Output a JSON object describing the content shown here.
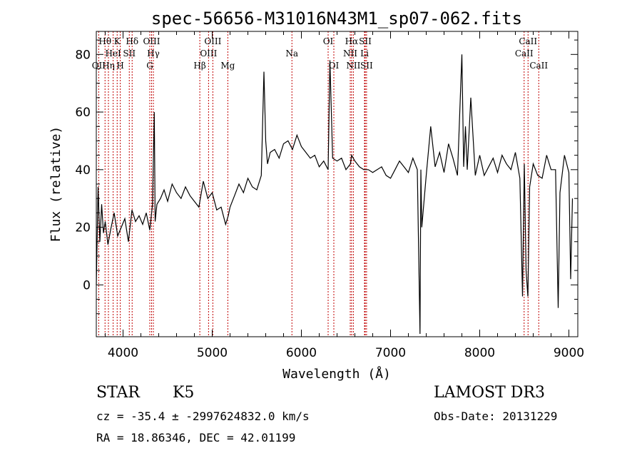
{
  "chart_data": {
    "type": "line",
    "title": "spec-56656-M31016N43M1_sp07-062.fits",
    "xlabel": "Wavelength (Å)",
    "ylabel": "Flux (relative)",
    "xlim": [
      3700,
      9100
    ],
    "ylim": [
      -18,
      88
    ],
    "xticks": [
      "4000",
      "5000",
      "6000",
      "7000",
      "8000",
      "9000"
    ],
    "yticks": [
      "0",
      "20",
      "40",
      "60",
      "80"
    ],
    "xtick_values": [
      4000,
      5000,
      6000,
      7000,
      8000,
      9000
    ],
    "ytick_values": [
      0,
      20,
      40,
      60,
      80
    ],
    "lines": [
      {
        "label": "Hθ",
        "wavelength": 3798,
        "row": 0
      },
      {
        "label": "OII",
        "wavelength": 3727,
        "row": 2
      },
      {
        "label": "Hη",
        "wavelength": 3836,
        "row": 2
      },
      {
        "label": "HeI",
        "wavelength": 3889,
        "row": 1
      },
      {
        "label": "K",
        "wavelength": 3934,
        "row": 0
      },
      {
        "label": "H",
        "wavelength": 3969,
        "row": 2
      },
      {
        "label": "SII",
        "wavelength": 4070,
        "row": 1
      },
      {
        "label": "Hδ",
        "wavelength": 4102,
        "row": 0
      },
      {
        "label": "G",
        "wavelength": 4300,
        "row": 2
      },
      {
        "label": "OIII",
        "wavelength": 4320,
        "row": 0
      },
      {
        "label": "Hγ",
        "wavelength": 4340,
        "row": 1
      },
      {
        "label": "Hβ",
        "wavelength": 4861,
        "row": 2
      },
      {
        "label": "OIII",
        "wavelength": 4959,
        "row": 1
      },
      {
        "label": "OIII",
        "wavelength": 5007,
        "row": 0
      },
      {
        "label": "Mg",
        "wavelength": 5175,
        "row": 2
      },
      {
        "label": "Na",
        "wavelength": 5894,
        "row": 1
      },
      {
        "label": "OI",
        "wavelength": 6300,
        "row": 0
      },
      {
        "label": "OI",
        "wavelength": 6364,
        "row": 2
      },
      {
        "label": "NII",
        "wavelength": 6548,
        "row": 1
      },
      {
        "label": "Hα",
        "wavelength": 6563,
        "row": 0
      },
      {
        "label": "NII",
        "wavelength": 6583,
        "row": 2
      },
      {
        "label": "SII",
        "wavelength": 6716,
        "row": 0
      },
      {
        "label": "Li",
        "wavelength": 6708,
        "row": 1
      },
      {
        "label": "SII",
        "wavelength": 6731,
        "row": 2
      },
      {
        "label": "CaII",
        "wavelength": 8498,
        "row": 1
      },
      {
        "label": "CaII",
        "wavelength": 8542,
        "row": 0
      },
      {
        "label": "CaII",
        "wavelength": 8662,
        "row": 2
      }
    ],
    "spectrum": {
      "x": [
        3700,
        3720,
        3740,
        3760,
        3780,
        3800,
        3830,
        3860,
        3900,
        3940,
        3980,
        4020,
        4060,
        4100,
        4140,
        4180,
        4220,
        4260,
        4300,
        4330,
        4350,
        4360,
        4380,
        4420,
        4460,
        4500,
        4550,
        4600,
        4650,
        4700,
        4750,
        4800,
        4850,
        4900,
        4950,
        5000,
        5050,
        5100,
        5150,
        5180,
        5200,
        5250,
        5300,
        5350,
        5400,
        5450,
        5500,
        5550,
        5580,
        5600,
        5620,
        5650,
        5700,
        5750,
        5800,
        5850,
        5900,
        5950,
        6000,
        6050,
        6100,
        6150,
        6200,
        6250,
        6300,
        6320,
        6350,
        6400,
        6450,
        6500,
        6550,
        6563,
        6600,
        6650,
        6700,
        6750,
        6800,
        6850,
        6900,
        6950,
        7000,
        7050,
        7100,
        7150,
        7200,
        7250,
        7300,
        7330,
        7340,
        7350,
        7400,
        7450,
        7500,
        7550,
        7600,
        7650,
        7700,
        7750,
        7800,
        7820,
        7840,
        7860,
        7900,
        7950,
        8000,
        8050,
        8100,
        8150,
        8200,
        8250,
        8300,
        8350,
        8400,
        8450,
        8480,
        8500,
        8520,
        8540,
        8560,
        8600,
        8650,
        8700,
        8750,
        8800,
        8850,
        8880,
        8900,
        8950,
        9000,
        9020,
        9040
      ],
      "y": [
        0,
        34,
        15,
        28,
        18,
        22,
        14,
        19,
        25,
        17,
        20,
        23,
        15,
        26,
        22,
        24,
        21,
        25,
        19,
        28,
        60,
        22,
        28,
        30,
        33,
        29,
        35,
        32,
        30,
        34,
        31,
        29,
        27,
        36,
        30,
        32,
        26,
        27,
        21,
        24,
        27,
        31,
        35,
        32,
        37,
        34,
        33,
        38,
        74,
        50,
        42,
        46,
        47,
        44,
        49,
        50,
        47,
        52,
        48,
        46,
        44,
        45,
        41,
        43,
        40,
        78,
        44,
        43,
        44,
        40,
        42,
        45,
        43,
        41,
        40,
        40,
        39,
        40,
        41,
        38,
        37,
        40,
        43,
        41,
        39,
        44,
        40,
        -17,
        40,
        20,
        38,
        55,
        41,
        46,
        39,
        49,
        44,
        38,
        80,
        41,
        55,
        40,
        65,
        38,
        45,
        38,
        41,
        44,
        39,
        45,
        42,
        40,
        46,
        37,
        -4,
        42,
        5,
        -4,
        34,
        42,
        38,
        37,
        45,
        40,
        40,
        -8,
        32,
        45,
        39,
        2,
        30
      ]
    }
  },
  "info": {
    "object_class": "STAR",
    "subclass": "K5",
    "survey": "LAMOST DR3",
    "redshift_line": "cz = -35.4 ± -2997624832.0 km/s",
    "obs_date": "Obs-Date: 20131229",
    "coords": "RA =  18.86346, DEC =  42.01199"
  }
}
